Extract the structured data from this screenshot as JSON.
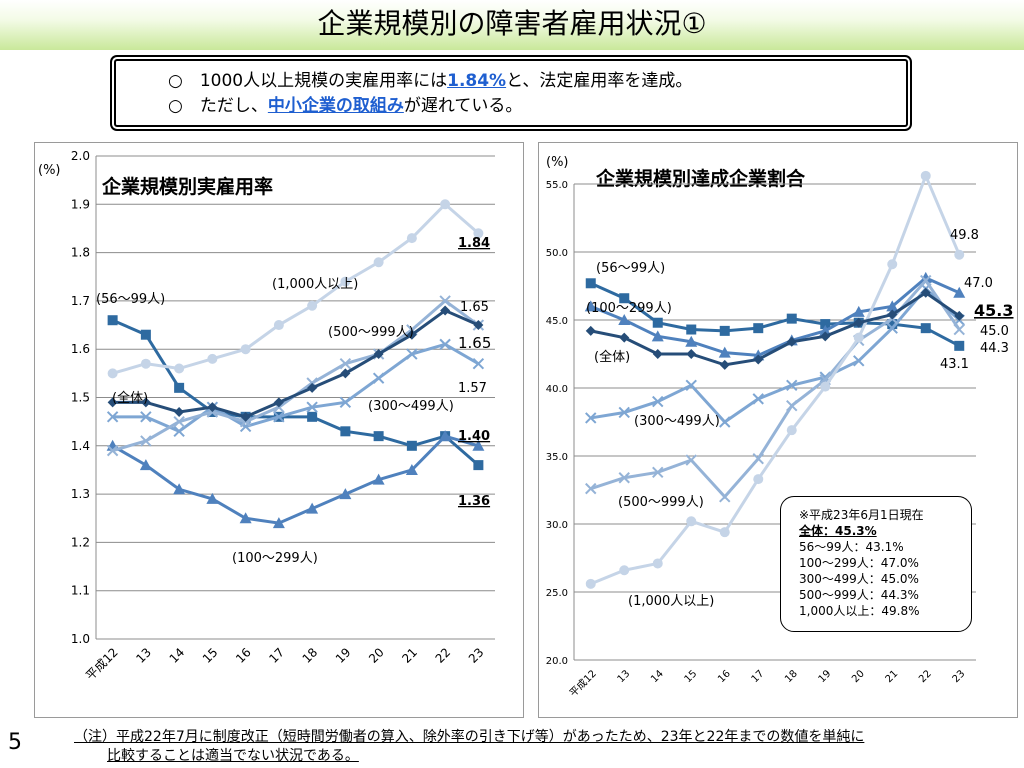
{
  "slide_title": "企業規模別の障害者雇用状況①",
  "summary": {
    "line1_prefix": "○　1000人以上規模の実雇用率には",
    "line1_highlight": "1.84%",
    "line1_suffix": "と、法定雇用率を達成。",
    "line2_prefix": "○　ただし、",
    "line2_highlight": "中小企業の取組み",
    "line2_suffix": "が遅れている。"
  },
  "page_number": "5",
  "footnote": {
    "line1": "（注）平成22年7月に制度改正（短時間労働者の算入、除外率の引き下げ等）があったため、23年と22年までの数値を単純に",
    "line2": "比較することは適当でない状況である。"
  },
  "legend_note": {
    "header": "※平成23年6月1日現在",
    "total": "全体：45.3%",
    "items": [
      "56～99人：43.1%",
      "100～299人：47.0%",
      "300～499人：45.0%",
      "500～999人：44.3%",
      "1,000人以上：49.8%"
    ]
  },
  "chart_data": [
    {
      "type": "line",
      "title": "企業規模別実雇用率",
      "ylabel": "(%)",
      "ylim": [
        1.0,
        2.0
      ],
      "yticks": [
        "1.0",
        "1.1",
        "1.2",
        "1.3",
        "1.4",
        "1.5",
        "1.6",
        "1.7",
        "1.8",
        "1.9",
        "2.0"
      ],
      "categories": [
        "平成12",
        "13",
        "14",
        "15",
        "16",
        "17",
        "18",
        "19",
        "20",
        "21",
        "22",
        "23"
      ],
      "grid": true,
      "series": [
        {
          "name": "(56～99人)",
          "color": "#2e6aa0",
          "marker": "square",
          "values": [
            1.66,
            1.63,
            1.52,
            1.47,
            1.46,
            1.46,
            1.46,
            1.43,
            1.42,
            1.4,
            1.42,
            1.36
          ]
        },
        {
          "name": "(100～299人)",
          "color": "#4f81bd",
          "marker": "triangle",
          "values": [
            1.4,
            1.36,
            1.31,
            1.29,
            1.25,
            1.24,
            1.27,
            1.3,
            1.33,
            1.35,
            1.42,
            1.4
          ]
        },
        {
          "name": "(300～499人)",
          "color": "#7ea6d3",
          "marker": "x",
          "values": [
            1.46,
            1.46,
            1.43,
            1.48,
            1.44,
            1.46,
            1.48,
            1.49,
            1.54,
            1.59,
            1.61,
            1.57
          ]
        },
        {
          "name": "(500～999人)",
          "color": "#95b3d7",
          "marker": "x",
          "values": [
            1.39,
            1.41,
            1.45,
            1.47,
            1.45,
            1.48,
            1.53,
            1.57,
            1.59,
            1.64,
            1.7,
            1.65
          ]
        },
        {
          "name": "(1,000人以上)",
          "color": "#c5d4e7",
          "marker": "circle",
          "values": [
            1.55,
            1.57,
            1.56,
            1.58,
            1.6,
            1.65,
            1.69,
            1.74,
            1.78,
            1.83,
            1.9,
            1.84
          ]
        },
        {
          "name": "(全体)",
          "color": "#264d78",
          "marker": "diamond",
          "values": [
            1.49,
            1.49,
            1.47,
            1.48,
            1.46,
            1.49,
            1.52,
            1.55,
            1.59,
            1.63,
            1.68,
            1.65
          ]
        }
      ],
      "annotations": [
        "1.84",
        "1.65",
        "1.65",
        "1.57",
        "1.40",
        "1.36"
      ]
    },
    {
      "type": "line",
      "title": "企業規模別達成企業割合",
      "ylabel": "(%)",
      "ylim": [
        20.0,
        55.0
      ],
      "yticks": [
        "20.0",
        "25.0",
        "30.0",
        "35.0",
        "40.0",
        "45.0",
        "50.0",
        "55.0"
      ],
      "categories": [
        "平成12",
        "13",
        "14",
        "15",
        "16",
        "17",
        "18",
        "19",
        "20",
        "21",
        "22",
        "23"
      ],
      "grid": true,
      "series": [
        {
          "name": "(56～99人)",
          "color": "#2e6aa0",
          "marker": "square",
          "values": [
            47.7,
            46.6,
            44.8,
            44.3,
            44.2,
            44.4,
            45.1,
            44.7,
            44.8,
            44.7,
            44.4,
            43.1
          ]
        },
        {
          "name": "(100～299人)",
          "color": "#4f81bd",
          "marker": "triangle",
          "values": [
            46.0,
            45.0,
            43.8,
            43.4,
            42.6,
            42.4,
            43.5,
            44.2,
            45.6,
            46.0,
            48.1,
            47.0
          ]
        },
        {
          "name": "(300～499人)",
          "color": "#7ea6d3",
          "marker": "x",
          "values": [
            37.8,
            38.2,
            39.0,
            40.2,
            37.5,
            39.2,
            40.2,
            40.8,
            42.0,
            44.4,
            47.3,
            45.0
          ]
        },
        {
          "name": "(500～999人)",
          "color": "#95b3d7",
          "marker": "x",
          "values": [
            32.6,
            33.4,
            33.8,
            34.7,
            32.0,
            34.8,
            38.7,
            40.6,
            43.5,
            45.1,
            47.9,
            44.3
          ]
        },
        {
          "name": "(1,000人以上)",
          "color": "#c5d4e7",
          "marker": "circle",
          "values": [
            25.6,
            26.6,
            27.1,
            30.2,
            29.4,
            33.3,
            36.9,
            40.1,
            43.7,
            49.1,
            55.6,
            49.8
          ]
        },
        {
          "name": "(全体)",
          "color": "#264d78",
          "marker": "diamond",
          "values": [
            44.2,
            43.7,
            42.5,
            42.5,
            41.7,
            42.1,
            43.4,
            43.8,
            44.8,
            45.4,
            47.0,
            45.3
          ]
        }
      ],
      "annotations": [
        "49.8",
        "47.0",
        "45.3",
        "45.0",
        "44.3",
        "43.1"
      ]
    }
  ]
}
